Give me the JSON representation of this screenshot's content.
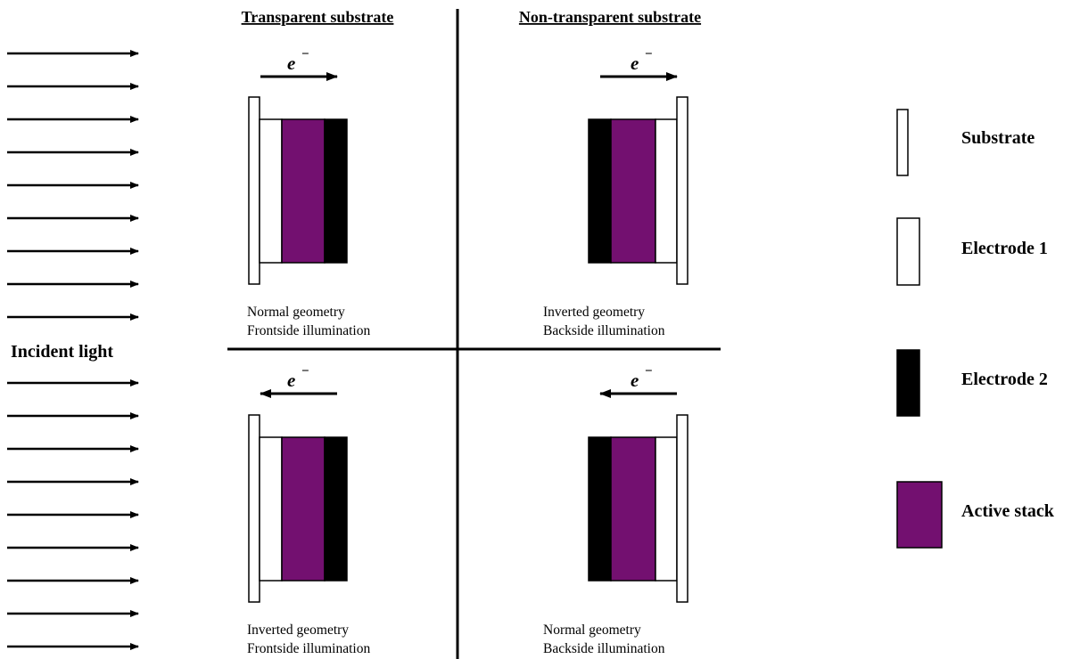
{
  "headers": {
    "left": "Transparent substrate",
    "right": "Non-transparent substrate"
  },
  "incident_light_label": "Incident light",
  "electron_symbol": "e",
  "electron_charge": "−",
  "panels": [
    {
      "id": "top-left",
      "caption_1": "Normal geometry",
      "caption_2": "Frontside illumination",
      "electron_direction": "right"
    },
    {
      "id": "top-right",
      "caption_1": "Inverted geometry",
      "caption_2": "Backside illumination",
      "electron_direction": "right"
    },
    {
      "id": "bottom-left",
      "caption_1": "Inverted geometry",
      "caption_2": "Frontside illumination",
      "electron_direction": "left"
    },
    {
      "id": "bottom-right",
      "caption_1": "Normal geometry",
      "caption_2": "Backside illumination",
      "electron_direction": "left"
    }
  ],
  "legend": [
    {
      "id": "substrate",
      "label": "Substrate",
      "color": "#ffffff"
    },
    {
      "id": "electrode1",
      "label": "Electrode 1",
      "color": "#ffffff"
    },
    {
      "id": "electrode2",
      "label": "Electrode 2",
      "color": "#000000"
    },
    {
      "id": "active",
      "label": "Active stack",
      "color": "#731070"
    }
  ]
}
